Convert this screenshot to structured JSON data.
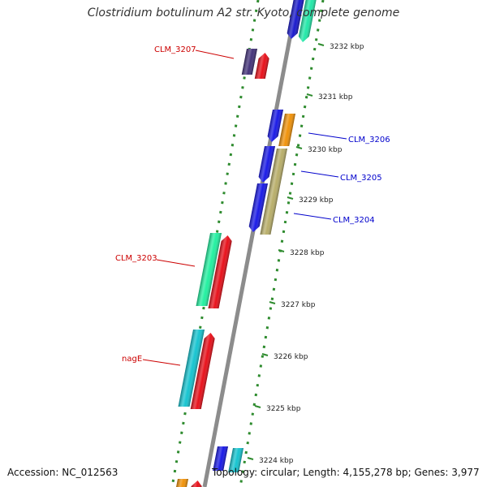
{
  "title": "Clostridium botulinum A2 str. Kyoto, complete genome",
  "footer": {
    "accession": "Accession: NC_012563",
    "summary": "Topology: circular; Length: 4,155,278 bp; Genes: 3,977"
  },
  "colors": {
    "forward_label": "#cc0000",
    "reverse_label": "#0000cc",
    "backbone": "#8c8c8c",
    "scale_ticks": "#2e8b2e",
    "kbp_text": "#222222"
  },
  "kbp_ticks": [
    "3232 kbp",
    "3231 kbp",
    "3230 kbp",
    "3229 kbp",
    "3228 kbp",
    "3227 kbp",
    "3226 kbp",
    "3225 kbp",
    "3224 kbp"
  ],
  "gene_labels": [
    {
      "name": "CLM_3207",
      "strand": "forward"
    },
    {
      "name": "CLM_3206",
      "strand": "reverse"
    },
    {
      "name": "CLM_3205",
      "strand": "reverse"
    },
    {
      "name": "CLM_3204",
      "strand": "reverse"
    },
    {
      "name": "CLM_3203",
      "strand": "forward"
    },
    {
      "name": "nagE",
      "strand": "forward"
    }
  ],
  "features": [
    {
      "id": "feat-top-left",
      "color": "#1a1acc",
      "direction": "down"
    },
    {
      "id": "feat-top-right",
      "color": "#22e8a8",
      "direction": "down"
    },
    {
      "id": "feat-clm3207-a",
      "color": "#44337a",
      "direction": "none"
    },
    {
      "id": "feat-clm3207-b",
      "color": "#e8101a",
      "direction": "up"
    },
    {
      "id": "feat-clm3206-a",
      "color": "#1a1ae6",
      "direction": "down"
    },
    {
      "id": "feat-clm3206-b",
      "color": "#f0920a",
      "direction": "none"
    },
    {
      "id": "feat-clm3205-a",
      "color": "#1a1ae6",
      "direction": "down"
    },
    {
      "id": "feat-clm3205-b",
      "color": "#b8ae6a",
      "direction": "none"
    },
    {
      "id": "feat-clm3204-a",
      "color": "#1a1ae6",
      "direction": "down"
    },
    {
      "id": "feat-clm3203-a",
      "color": "#22f0a0",
      "direction": "none"
    },
    {
      "id": "feat-clm3203-b",
      "color": "#e8101a",
      "direction": "up"
    },
    {
      "id": "feat-nage-a",
      "color": "#16c4d0",
      "direction": "none"
    },
    {
      "id": "feat-nage-b",
      "color": "#e8101a",
      "direction": "up"
    },
    {
      "id": "feat-bottom-a",
      "color": "#1a1ae6",
      "direction": "none"
    },
    {
      "id": "feat-bottom-b",
      "color": "#16c4d0",
      "direction": "none"
    },
    {
      "id": "feat-bottom-c",
      "color": "#f0920a",
      "direction": "none"
    },
    {
      "id": "feat-bottom-d",
      "color": "#e8101a",
      "direction": "up"
    }
  ]
}
